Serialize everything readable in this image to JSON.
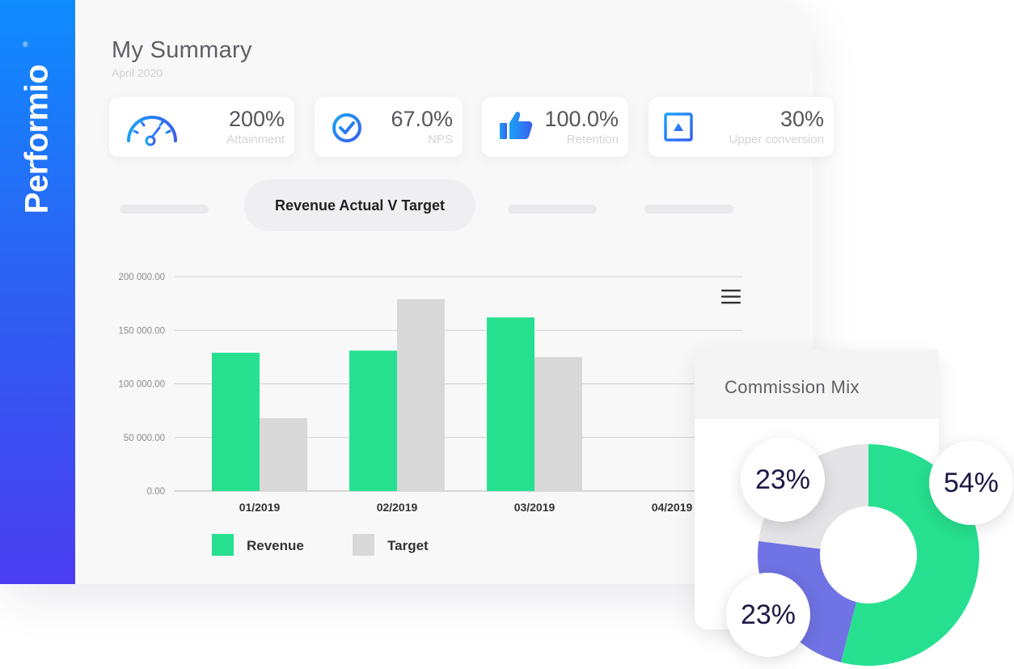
{
  "brand": {
    "name": "Performio",
    "registered": "®"
  },
  "header": {
    "title": "My Summary",
    "subtitle": "April 2020"
  },
  "kpis": [
    {
      "value": "200%",
      "label": "Attainment",
      "icon": "speedometer-icon"
    },
    {
      "value": "67.0%",
      "label": "NPS",
      "icon": "check-circle-icon"
    },
    {
      "value": "100.0%",
      "label": "Retention",
      "icon": "thumbs-up-icon"
    },
    {
      "value": "30%",
      "label": "Upper conversion",
      "icon": "arrow-up-box-icon"
    }
  ],
  "tabs": {
    "active_label": "Revenue Actual V Target"
  },
  "colors": {
    "revenue": "#27e08f",
    "target": "#d8d8d8",
    "accent": "#2f6bf2",
    "purple": "#6f73e3",
    "donut_gray": "#e4e4e6"
  },
  "chart_data": {
    "type": "bar",
    "categories": [
      "01/2019",
      "02/2019",
      "03/2019",
      "04/2019"
    ],
    "series": [
      {
        "name": "Revenue",
        "values": [
          129000,
          131000,
          162000,
          null
        ]
      },
      {
        "name": "Target",
        "values": [
          68000,
          179000,
          125000,
          null
        ]
      }
    ],
    "yticks": [
      "200 000.00",
      "150 000.00",
      "100 000.00",
      "50 000.00",
      "0.00"
    ],
    "ylim": [
      0,
      200000
    ],
    "grid": true,
    "legend_position": "bottom-left"
  },
  "commission_mix": {
    "title": "Commission Mix",
    "chart_data": {
      "type": "pie",
      "labels": [
        "54%",
        "23%",
        "23%"
      ],
      "values": [
        54,
        23,
        23
      ],
      "colors": [
        "#27e08f",
        "#6f73e3",
        "#e4e4e6"
      ]
    }
  }
}
